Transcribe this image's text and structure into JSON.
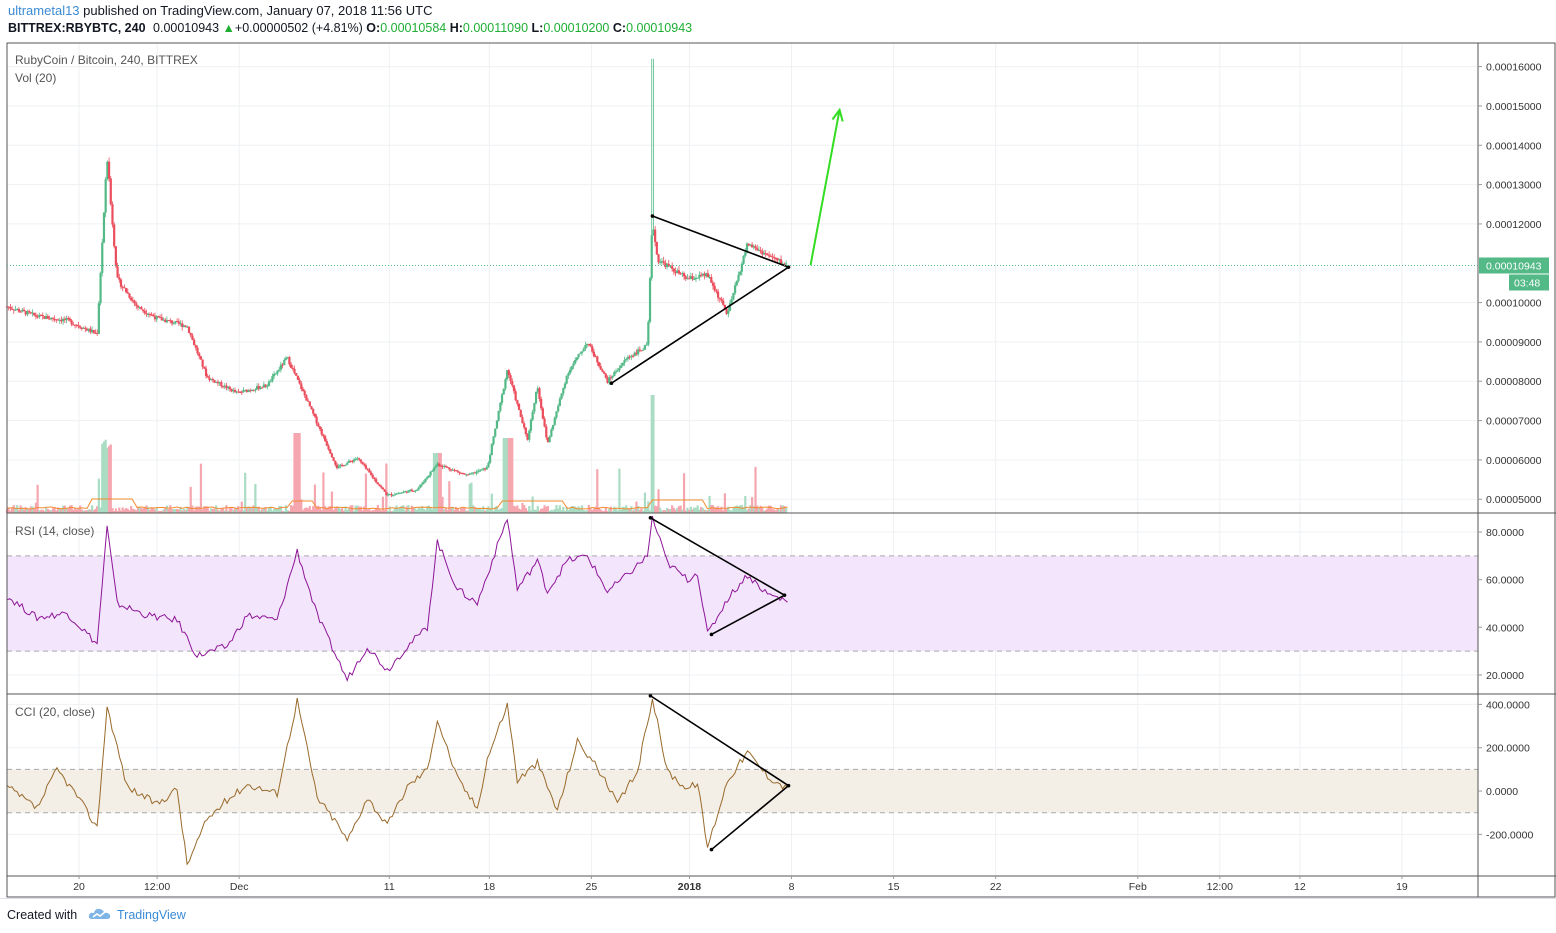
{
  "header": {
    "user": "ultrametal13",
    "published_text": " published on TradingView.com, January 07, 2018 11:56 UTC",
    "symbol": "BITTREX:RBYBTC, 240",
    "last": "0.00010943",
    "change": "+0.00000502 (+4.81%)",
    "o_label": "O:",
    "o_value": "0.00010584",
    "h_label": "H:",
    "h_value": "0.00011090",
    "l_label": "L:",
    "l_value": "0.00010200",
    "c_label": "C:",
    "c_value": "0.00010943"
  },
  "footer": {
    "created_with": "Created with",
    "brand": "TradingView"
  },
  "colors": {
    "up": "#53b987",
    "down": "#eb4d5c",
    "volume_up": "#a9dcc3",
    "volume_down": "#f5a6ae",
    "vol_ma": "#f48c2f",
    "rsi": "#8e1599",
    "rsi_band": "#f3e5fb",
    "cci": "#996a2c",
    "cci_band": "#f3eee6",
    "last_price": "#53b987",
    "arrow": "#33dd22",
    "grid": "#eef0f3"
  },
  "chart_data": [
    {
      "type": "candlestick",
      "title": "RubyCoin / Bitcoin, 240, BITTREX",
      "indicator_label": "Vol (20)",
      "y_ticks": [
        "0.00016000",
        "0.00015000",
        "0.00014000",
        "0.00013000",
        "0.00012000",
        "0.00010000",
        "0.00009000",
        "0.00008000",
        "0.00007000",
        "0.00006000",
        "0.00005000"
      ],
      "y_tick_values": [
        0.00016,
        0.00015,
        0.00014,
        0.00013,
        0.00012,
        0.0001,
        9e-05,
        8e-05,
        7e-05,
        6e-05,
        5e-05
      ],
      "ylim": [
        4.65e-05,
        0.000166
      ],
      "last_price_label": "0.00010943",
      "countdown_label": "03:48",
      "last_price": 0.00010943,
      "key_points": [
        {
          "x": 0,
          "y": 9.9e-05
        },
        {
          "x": 3,
          "y": 9.65e-05
        },
        {
          "x": 6,
          "y": 9.55e-05
        },
        {
          "x": 9,
          "y": 9.2e-05
        },
        {
          "x": 10,
          "y": 0.000137
        },
        {
          "x": 11,
          "y": 0.000106
        },
        {
          "x": 13,
          "y": 9.9e-05
        },
        {
          "x": 15,
          "y": 9.6e-05
        },
        {
          "x": 18,
          "y": 9.4e-05
        },
        {
          "x": 20,
          "y": 8.1e-05
        },
        {
          "x": 23,
          "y": 7.7e-05
        },
        {
          "x": 26,
          "y": 7.9e-05
        },
        {
          "x": 28,
          "y": 8.6e-05
        },
        {
          "x": 30,
          "y": 7.5e-05
        },
        {
          "x": 33,
          "y": 5.8e-05
        },
        {
          "x": 35,
          "y": 6.05e-05
        },
        {
          "x": 38,
          "y": 5.1e-05
        },
        {
          "x": 41,
          "y": 5.25e-05
        },
        {
          "x": 43,
          "y": 5.9e-05
        },
        {
          "x": 46,
          "y": 5.6e-05
        },
        {
          "x": 48,
          "y": 5.8e-05
        },
        {
          "x": 50,
          "y": 8.3e-05
        },
        {
          "x": 52,
          "y": 6.5e-05
        },
        {
          "x": 53,
          "y": 7.9e-05
        },
        {
          "x": 54,
          "y": 6.4e-05
        },
        {
          "x": 56,
          "y": 8.2e-05
        },
        {
          "x": 58,
          "y": 9e-05
        },
        {
          "x": 60,
          "y": 8e-05
        },
        {
          "x": 62,
          "y": 8.6e-05
        },
        {
          "x": 64,
          "y": 8.9e-05
        },
        {
          "x": 64.5,
          "y": 0.000121
        },
        {
          "x": 65,
          "y": 0.000111
        },
        {
          "x": 68,
          "y": 0.000106
        },
        {
          "x": 70,
          "y": 0.000107
        },
        {
          "x": 72,
          "y": 9.7e-05
        },
        {
          "x": 74,
          "y": 0.000115
        },
        {
          "x": 76,
          "y": 0.000112
        },
        {
          "x": 78,
          "y": 0.0001094
        }
      ],
      "x_ticks": [
        {
          "label": "20",
          "x": 7.2
        },
        {
          "label": "12:00",
          "x": 15.0
        },
        {
          "label": "Dec",
          "x": 23.2
        },
        {
          "label": "11",
          "x": 38.2
        },
        {
          "label": "18",
          "x": 48.2
        },
        {
          "label": "25",
          "x": 58.4
        },
        {
          "label": "2018",
          "x": 68.2
        },
        {
          "label": "8",
          "x": 78.4
        },
        {
          "label": "15",
          "x": 88.6
        },
        {
          "label": "22",
          "x": 98.8
        },
        {
          "label": "Feb",
          "x": 113.0
        },
        {
          "label": "12:00",
          "x": 121.2
        },
        {
          "label": "12",
          "x": 129.2
        },
        {
          "label": "19",
          "x": 139.4
        }
      ],
      "xlim": [
        0,
        147
      ],
      "triangle": {
        "top_start": [
          64.5,
          0.000122
        ],
        "bottom_start": [
          60.4,
          7.95e-05
        ],
        "apex": [
          78.1,
          0.000109
        ]
      },
      "forecast_arrow": {
        "from": [
          80.3,
          0.0001095
        ],
        "to": [
          83.2,
          0.000149
        ]
      }
    },
    {
      "type": "line",
      "title": "RSI (14, close)",
      "y_ticks": [
        "80.0000",
        "60.0000",
        "40.0000",
        "20.0000"
      ],
      "y_tick_values": [
        80,
        60,
        40,
        20
      ],
      "ylim": [
        12,
        88
      ],
      "bands": [
        30,
        70
      ],
      "key_points": [
        {
          "x": 0,
          "y": 53
        },
        {
          "x": 3,
          "y": 44
        },
        {
          "x": 6,
          "y": 46
        },
        {
          "x": 9,
          "y": 33
        },
        {
          "x": 10,
          "y": 82
        },
        {
          "x": 11,
          "y": 50
        },
        {
          "x": 14,
          "y": 45
        },
        {
          "x": 17,
          "y": 43
        },
        {
          "x": 19,
          "y": 28
        },
        {
          "x": 22,
          "y": 32
        },
        {
          "x": 24,
          "y": 45
        },
        {
          "x": 27,
          "y": 43
        },
        {
          "x": 29,
          "y": 72
        },
        {
          "x": 31,
          "y": 45
        },
        {
          "x": 33,
          "y": 27
        },
        {
          "x": 34,
          "y": 18
        },
        {
          "x": 36,
          "y": 32
        },
        {
          "x": 38,
          "y": 22
        },
        {
          "x": 40,
          "y": 32
        },
        {
          "x": 42,
          "y": 40
        },
        {
          "x": 43,
          "y": 76
        },
        {
          "x": 45,
          "y": 56
        },
        {
          "x": 47,
          "y": 50
        },
        {
          "x": 48,
          "y": 62
        },
        {
          "x": 50,
          "y": 86
        },
        {
          "x": 51,
          "y": 56
        },
        {
          "x": 53,
          "y": 68
        },
        {
          "x": 54,
          "y": 55
        },
        {
          "x": 56,
          "y": 68
        },
        {
          "x": 58,
          "y": 70
        },
        {
          "x": 60,
          "y": 55
        },
        {
          "x": 62,
          "y": 62
        },
        {
          "x": 64,
          "y": 70
        },
        {
          "x": 64.5,
          "y": 86
        },
        {
          "x": 66,
          "y": 67
        },
        {
          "x": 68,
          "y": 60
        },
        {
          "x": 69,
          "y": 63
        },
        {
          "x": 70,
          "y": 37
        },
        {
          "x": 72,
          "y": 52
        },
        {
          "x": 74,
          "y": 62
        },
        {
          "x": 76,
          "y": 54
        },
        {
          "x": 78,
          "y": 51
        }
      ],
      "triangle": {
        "top_start": [
          64.3,
          86
        ],
        "bottom_start": [
          70.4,
          37
        ],
        "apex": [
          77.7,
          53.5
        ]
      }
    },
    {
      "type": "line",
      "title": "CCI (20, close)",
      "y_ticks": [
        "400.0000",
        "200.0000",
        "0.0000",
        "-200.0000"
      ],
      "y_tick_values": [
        400,
        200,
        0,
        -200
      ],
      "ylim": [
        -392,
        448
      ],
      "bands": [
        -100,
        100
      ],
      "key_points": [
        {
          "x": 0,
          "y": 20
        },
        {
          "x": 3,
          "y": -80
        },
        {
          "x": 5,
          "y": 100
        },
        {
          "x": 7,
          "y": -20
        },
        {
          "x": 9,
          "y": -170
        },
        {
          "x": 10,
          "y": 390
        },
        {
          "x": 12,
          "y": 20
        },
        {
          "x": 15,
          "y": -60
        },
        {
          "x": 17,
          "y": 10
        },
        {
          "x": 18,
          "y": -340
        },
        {
          "x": 20,
          "y": -130
        },
        {
          "x": 22,
          "y": -40
        },
        {
          "x": 24,
          "y": 30
        },
        {
          "x": 27,
          "y": -10
        },
        {
          "x": 29,
          "y": 420
        },
        {
          "x": 31,
          "y": -30
        },
        {
          "x": 33,
          "y": -150
        },
        {
          "x": 34,
          "y": -230
        },
        {
          "x": 36,
          "y": -30
        },
        {
          "x": 38,
          "y": -160
        },
        {
          "x": 40,
          "y": 20
        },
        {
          "x": 42,
          "y": 100
        },
        {
          "x": 43,
          "y": 330
        },
        {
          "x": 45,
          "y": 60
        },
        {
          "x": 47,
          "y": -80
        },
        {
          "x": 48,
          "y": 150
        },
        {
          "x": 50,
          "y": 400
        },
        {
          "x": 51,
          "y": 50
        },
        {
          "x": 53,
          "y": 130
        },
        {
          "x": 55,
          "y": -90
        },
        {
          "x": 57,
          "y": 230
        },
        {
          "x": 59,
          "y": 110
        },
        {
          "x": 61,
          "y": -60
        },
        {
          "x": 63,
          "y": 90
        },
        {
          "x": 64.5,
          "y": 430
        },
        {
          "x": 66,
          "y": 90
        },
        {
          "x": 68,
          "y": 10
        },
        {
          "x": 69,
          "y": 40
        },
        {
          "x": 70,
          "y": -260
        },
        {
          "x": 72,
          "y": 50
        },
        {
          "x": 74,
          "y": 180
        },
        {
          "x": 76,
          "y": 70
        },
        {
          "x": 78,
          "y": 10
        }
      ],
      "triangle": {
        "top_start": [
          64.3,
          440
        ],
        "bottom_start": [
          70.4,
          -270
        ],
        "apex": [
          78.1,
          25
        ]
      }
    }
  ]
}
